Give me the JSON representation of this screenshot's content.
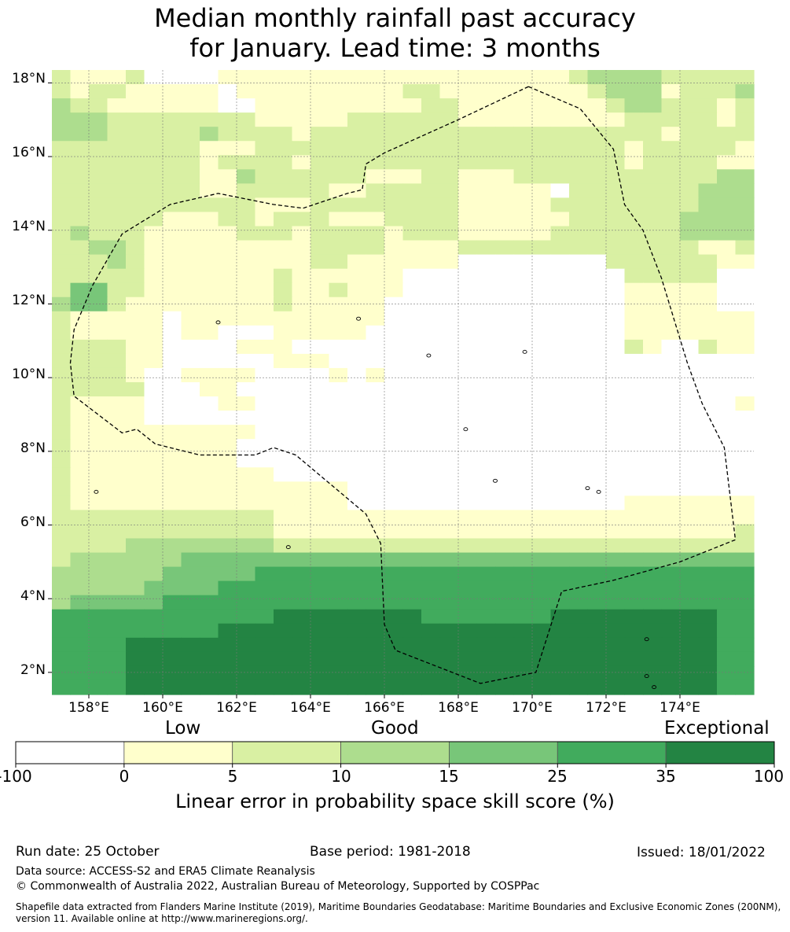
{
  "title": {
    "line1": "Median monthly rainfall past accuracy",
    "line2": "for January. Lead time: 3 months"
  },
  "map": {
    "lon_range": [
      157,
      176
    ],
    "lat_range": [
      1.4,
      18.35
    ],
    "cell_degrees": 0.5,
    "lat_ticks": [
      "18°N",
      "16°N",
      "14°N",
      "12°N",
      "10°N",
      "8°N",
      "6°N",
      "4°N",
      "2°N"
    ],
    "lon_ticks": [
      "158°E",
      "160°E",
      "162°E",
      "164°E",
      "166°E",
      "168°E",
      "170°E",
      "172°E",
      "174°E"
    ],
    "category_colors": [
      "#ffffff",
      "#ffffcc",
      "#d9f0a3",
      "#addd8e",
      "#78c679",
      "#41ab5d",
      "#238443"
    ],
    "grid": [
      "21112000011111111111111111112333322222",
      "21221111101111111112211111111233312223",
      "32211111100111111111221111111123322212",
      "33322222222111112222221111111112222212",
      "33322222322221222222222222222222212222",
      "22222222111222222222222222222221222221",
      "22222222122221222222222222222221222211",
      "22222222113222222111221112222222222233",
      "22222222112222211222221111102222222333",
      "22222222222111222222221111122222222333",
      "22222211122122211122221111112222223333",
      "23222111112221222212221111122222223333",
      "22332111111111222211112222222222222112",
      "22232111111111221111110000000022222211",
      "22222111111121111110000000000002222200",
      "24422111111121121110000000000001111100",
      "34421111111121111100000000000001111100",
      "21111101111111111100000000000001111111",
      "21111101100011111000000000000001111111",
      "22221100001110000000000000000002100211",
      "22221100000011100000000000000000000000",
      "22221001111000010100000000000000000000",
      "22222000110000000000000000000000000000",
      "21111000011000000000000000000000000001",
      "21111000000000000000000000000000000000",
      "21111111111000000000000000000000000000",
      "21111111110000000000000000000000000000",
      "21111111110000000000000000000000000000",
      "21111111111100000000000000000000000000",
      "21111111111111110000000000000000000000",
      "21111111111111110000000000000001111111",
      "22222222222211111111111111111111111111",
      "22222222222211111111111111111111111112",
      "22223333333322222222222222222222222222",
      "23333334444444444444444444444444444444",
      "33333344444555555555555555555555555555",
      "33333444455555555555555555555555555555",
      "34444455555555555555555555555555555555",
      "55555555555566666666555555566666666655",
      "55555555566666666666666666666666666655",
      "55556666666666666666666666666666666655",
      "55556666666666666666666666666666666655",
      "55556666666666666666666666666666666655",
      "55556666666666666666666666666666666655"
    ],
    "boundary": [
      [
        169.9,
        17.9
      ],
      [
        171.3,
        17.3
      ],
      [
        172.2,
        16.2
      ],
      [
        172.5,
        14.7
      ],
      [
        173.0,
        14.0
      ],
      [
        173.5,
        12.7
      ],
      [
        174.2,
        10.4
      ],
      [
        174.6,
        9.3
      ],
      [
        175.2,
        8.1
      ],
      [
        175.5,
        5.6
      ],
      [
        174.0,
        5.0
      ],
      [
        172.2,
        4.5
      ],
      [
        170.8,
        4.2
      ],
      [
        170.1,
        2.0
      ],
      [
        168.6,
        1.7
      ],
      [
        166.3,
        2.6
      ],
      [
        166.0,
        3.3
      ],
      [
        165.9,
        5.5
      ],
      [
        165.5,
        6.3
      ],
      [
        163.6,
        7.9
      ],
      [
        163.0,
        8.1
      ],
      [
        162.5,
        7.9
      ],
      [
        161.0,
        7.9
      ],
      [
        159.8,
        8.2
      ],
      [
        159.3,
        8.6
      ],
      [
        158.9,
        8.5
      ],
      [
        157.6,
        9.5
      ],
      [
        157.5,
        10.4
      ],
      [
        157.6,
        11.3
      ],
      [
        158.1,
        12.5
      ],
      [
        158.9,
        13.9
      ],
      [
        160.2,
        14.7
      ],
      [
        161.5,
        15.0
      ],
      [
        163.0,
        14.7
      ],
      [
        163.8,
        14.6
      ],
      [
        165.0,
        15.0
      ],
      [
        165.4,
        15.1
      ],
      [
        165.5,
        15.8
      ],
      [
        166.0,
        16.1
      ],
      [
        168.0,
        17.0
      ],
      [
        169.9,
        17.9
      ]
    ],
    "islands": [
      [
        158.2,
        6.9
      ],
      [
        163.4,
        5.4
      ],
      [
        167.2,
        10.6
      ],
      [
        168.2,
        8.6
      ],
      [
        169.0,
        7.2
      ],
      [
        171.5,
        7.0
      ],
      [
        171.8,
        6.9
      ],
      [
        173.1,
        2.9
      ],
      [
        173.1,
        1.9
      ],
      [
        173.3,
        1.6
      ],
      [
        165.3,
        11.6
      ],
      [
        169.8,
        10.7
      ],
      [
        161.5,
        11.5
      ]
    ],
    "colorbar": {
      "section_labels": {
        "low": "Low",
        "good": "Good",
        "exceptional": "Exceptional"
      },
      "ticks": [
        "-100",
        "0",
        "5",
        "10",
        "15",
        "25",
        "35",
        "100"
      ],
      "label": "Linear error in probability space skill score (%)"
    }
  },
  "footer": {
    "run_date": "Run date: 25 October",
    "base_period": "Base period: 1981-2018",
    "issued": "Issued: 18/01/2022",
    "data_source": "Data source: ACCESS-S2 and ERA5 Climate Reanalysis",
    "copyright": "© Commonwealth of Australia 2022, Australian Bureau of Meteorology, Supported by COSPPac",
    "shapefile_line1": "Shapefile data extracted from Flanders Marine Institute (2019), Maritime Boundaries Geodatabase: Maritime Boundaries and Exclusive Economic Zones (200NM),",
    "shapefile_line2": "version 11. Available online at http://www.marineregions.org/."
  }
}
